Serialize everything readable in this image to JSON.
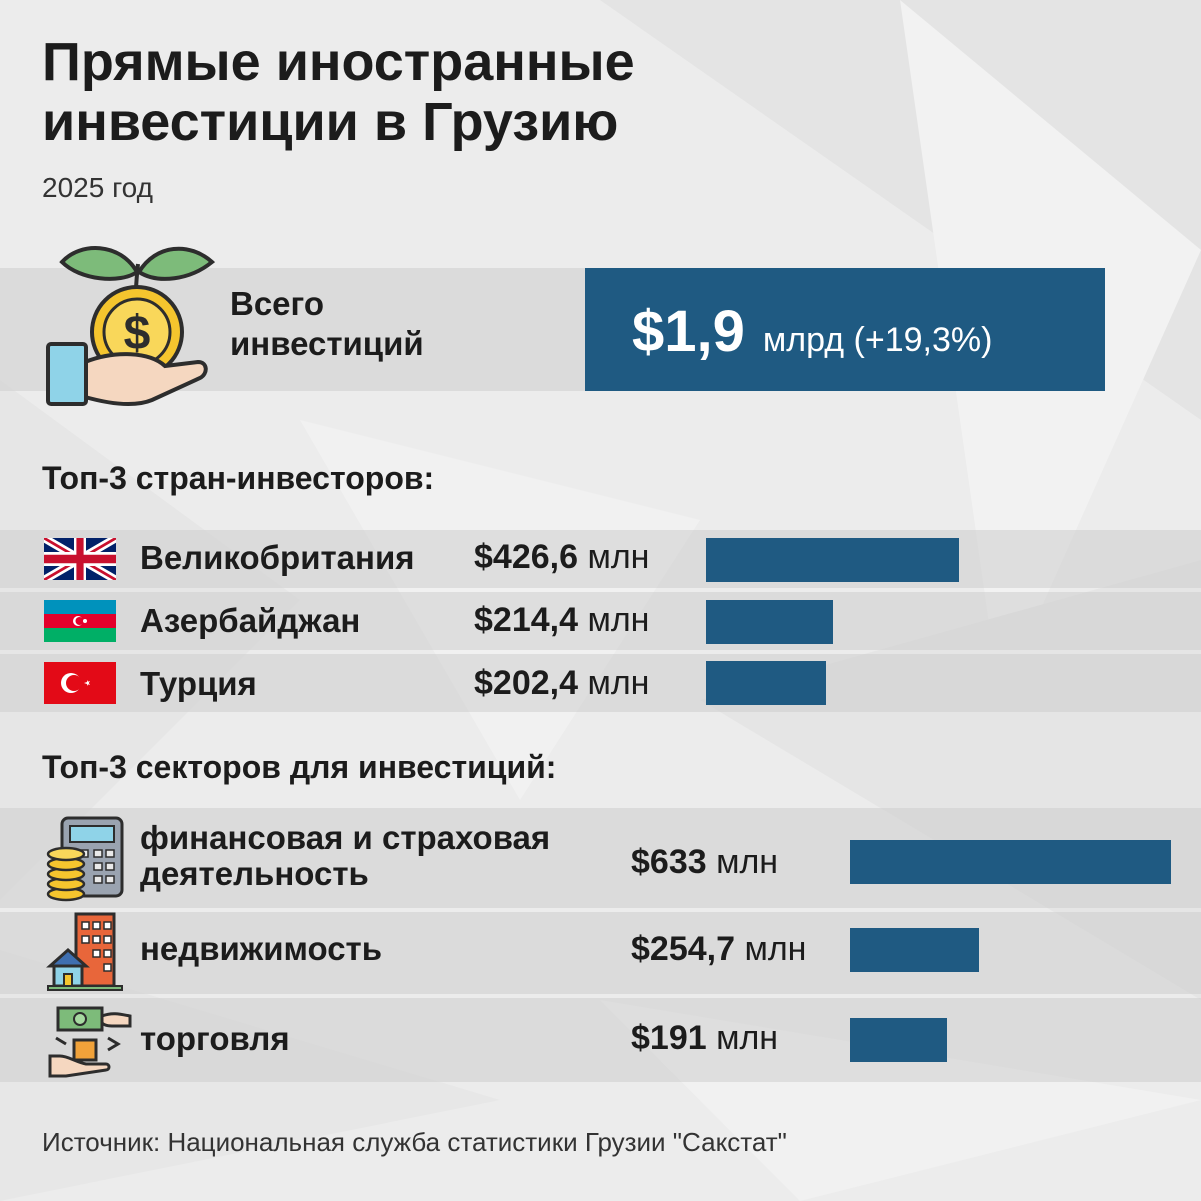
{
  "header": {
    "title_line1": "Прямые иностранные",
    "title_line2": "инвестиции в Грузию",
    "subtitle": "2025 год"
  },
  "total": {
    "label_line1": "Всего",
    "label_line2": "инвестиций",
    "value": "$1,9",
    "unit_change": "млрд (+19,3%)"
  },
  "countries": {
    "title": "Топ-3 стран-инвесторов:",
    "items": [
      {
        "name": "Великобритания",
        "value_text": "$426,6",
        "unit": "млн",
        "flag": "uk-flag-icon"
      },
      {
        "name": "Азербайджан",
        "value_text": "$214,4",
        "unit": "млн",
        "flag": "azerbaijan-flag-icon"
      },
      {
        "name": "Турция",
        "value_text": "$202,4",
        "unit": "млн",
        "flag": "turkey-flag-icon"
      }
    ]
  },
  "sectors": {
    "title": "Топ-3 секторов для инвестиций:",
    "items": [
      {
        "name_line1": "финансовая и страховая",
        "name_line2": "деятельность",
        "value_text": "$633",
        "unit": "млн",
        "icon": "calculator-coins-icon"
      },
      {
        "name_line1": "недвижимость",
        "name_line2": "",
        "value_text": "$254,7",
        "unit": "млн",
        "icon": "buildings-house-icon"
      },
      {
        "name_line1": "торговля",
        "name_line2": "",
        "value_text": "$191",
        "unit": "млн",
        "icon": "trade-exchange-icon"
      }
    ]
  },
  "source": "Источник: Национальная служба статистики Грузии \"Сакстат\"",
  "colors": {
    "bar": "#1f5a82",
    "background": "#ececec"
  },
  "chart_data": [
    {
      "type": "bar",
      "orientation": "horizontal",
      "title": "Топ-3 стран-инвесторов:",
      "categories": [
        "Великобритания",
        "Азербайджан",
        "Турция"
      ],
      "values": [
        426.6,
        214.4,
        202.4
      ],
      "unit": "млн $"
    },
    {
      "type": "bar",
      "orientation": "horizontal",
      "title": "Топ-3 секторов для инвестиций:",
      "categories": [
        "финансовая и страховая деятельность",
        "недвижимость",
        "торговля"
      ],
      "values": [
        633,
        254.7,
        191
      ],
      "unit": "млн $"
    }
  ]
}
